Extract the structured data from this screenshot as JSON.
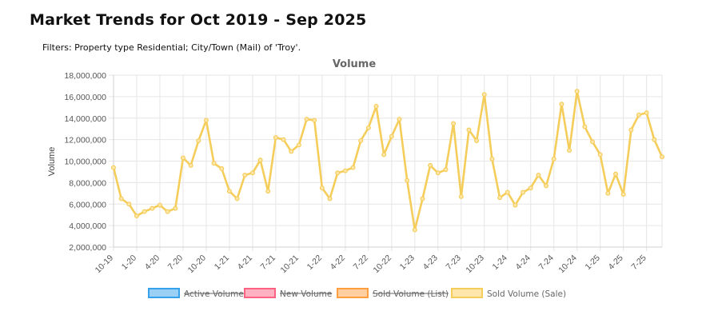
{
  "page": {
    "title": "Market Trends for Oct 2019 - Sep 2025",
    "filters": "Filters: Property type Residential; City/Town (Mail) of 'Troy'."
  },
  "chart_data": {
    "type": "line",
    "title": "Volume",
    "ylabel": "Volume",
    "xlabel": "",
    "ylim": [
      2000000,
      18000000
    ],
    "yticks": [
      "2,000,000",
      "4,000,000",
      "6,000,000",
      "8,000,000",
      "10,000,000",
      "12,000,000",
      "14,000,000",
      "16,000,000",
      "18,000,000"
    ],
    "ytick_values": [
      2000000,
      4000000,
      6000000,
      8000000,
      10000000,
      12000000,
      14000000,
      16000000,
      18000000
    ],
    "xticks": [
      "10-19",
      "1-20",
      "4-20",
      "7-20",
      "10-20",
      "1-21",
      "4-21",
      "7-21",
      "10-21",
      "1-22",
      "4-22",
      "7-22",
      "10-22",
      "1-23",
      "4-23",
      "7-23",
      "10-23",
      "1-24",
      "4-24",
      "7-24",
      "10-24",
      "1-25",
      "4-25",
      "7-25"
    ],
    "xtick_indices": [
      0,
      3,
      6,
      9,
      12,
      15,
      18,
      21,
      24,
      27,
      30,
      33,
      36,
      39,
      42,
      45,
      48,
      51,
      54,
      57,
      60,
      63,
      66,
      69
    ],
    "legend": [
      {
        "name": "Active Volume",
        "color": "#36a2eb",
        "fill": "#9ad0f5",
        "hidden": true
      },
      {
        "name": "New Volume",
        "color": "#ff6384",
        "fill": "#ffb1c1",
        "hidden": true
      },
      {
        "name": "Sold Volume (List)",
        "color": "#ff9f40",
        "fill": "#ffcf9f",
        "hidden": true
      },
      {
        "name": "Sold Volume (Sale)",
        "color": "#f5cd5b",
        "fill": "#ffe6aa",
        "hidden": false
      }
    ],
    "series": [
      {
        "name": "Sold Volume (Sale)",
        "color": "#f5cd5b",
        "values": [
          9400000,
          6500000,
          6000000,
          4900000,
          5300000,
          5600000,
          5900000,
          5300000,
          5600000,
          10300000,
          9600000,
          11900000,
          13800000,
          9800000,
          9300000,
          7200000,
          6500000,
          8700000,
          8900000,
          10100000,
          7200000,
          12200000,
          12000000,
          10900000,
          11500000,
          13900000,
          13800000,
          7500000,
          6500000,
          8900000,
          9100000,
          9400000,
          11900000,
          13100000,
          15100000,
          10600000,
          12300000,
          13900000,
          8200000,
          3600000,
          6500000,
          9600000,
          8900000,
          9200000,
          13500000,
          6700000,
          12900000,
          11900000,
          16200000,
          10200000,
          6600000,
          7100000,
          5900000,
          7100000,
          7500000,
          8700000,
          7700000,
          10200000,
          15300000,
          11000000,
          16500000,
          13200000,
          11800000,
          10600000,
          7000000,
          8800000,
          6900000,
          12900000,
          14300000,
          14500000,
          12000000,
          10400000
        ]
      }
    ]
  }
}
